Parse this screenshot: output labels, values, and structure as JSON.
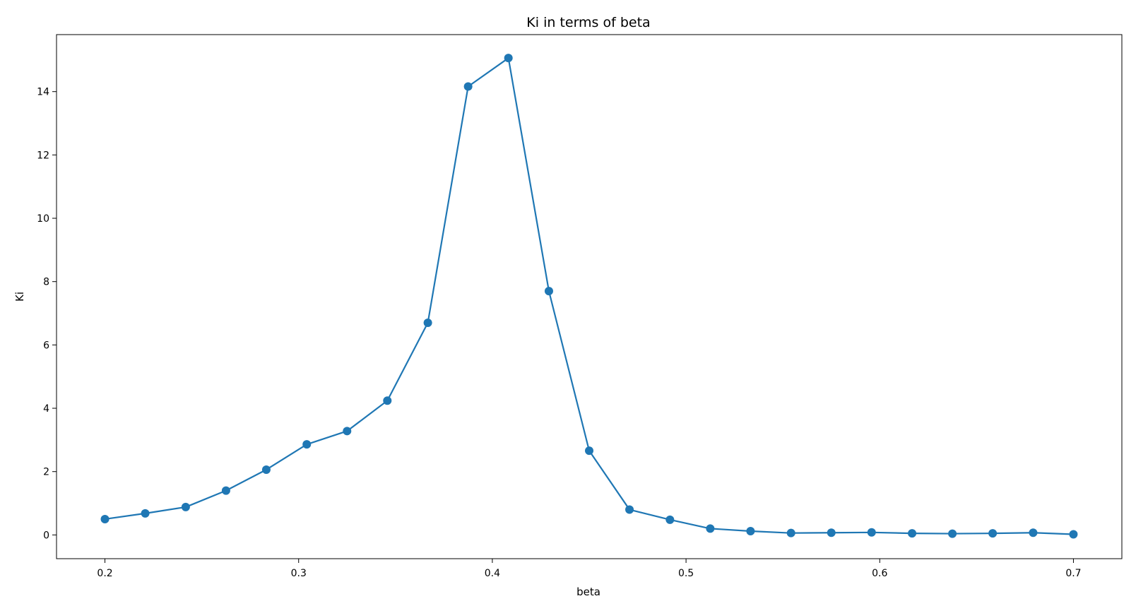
{
  "chart_data": {
    "type": "line",
    "title": "Ki in terms of beta",
    "xlabel": "beta",
    "ylabel": "Ki",
    "xlim": [
      0.175,
      0.725
    ],
    "ylim": [
      -0.75,
      15.8
    ],
    "xticks": [
      0.2,
      0.3,
      0.4,
      0.5,
      0.6,
      0.7
    ],
    "xtick_labels": [
      "0.2",
      "0.3",
      "0.4",
      "0.5",
      "0.6",
      "0.7"
    ],
    "yticks": [
      0,
      2,
      4,
      6,
      8,
      10,
      12,
      14
    ],
    "ytick_labels": [
      "0",
      "2",
      "4",
      "6",
      "8",
      "10",
      "12",
      "14"
    ],
    "grid": false,
    "series": [
      {
        "color": "#1f77b4",
        "marker": "circle",
        "x": [
          0.2,
          0.2208,
          0.2417,
          0.2625,
          0.2833,
          0.3042,
          0.325,
          0.3458,
          0.3667,
          0.3875,
          0.4083,
          0.4292,
          0.45,
          0.4708,
          0.4917,
          0.5125,
          0.5333,
          0.5542,
          0.575,
          0.5958,
          0.6167,
          0.6375,
          0.6583,
          0.6792,
          0.7
        ],
        "y": [
          0.5,
          0.68,
          0.88,
          1.4,
          2.06,
          2.86,
          3.28,
          4.24,
          6.7,
          14.16,
          15.06,
          7.7,
          2.66,
          0.8,
          0.48,
          0.2,
          0.12,
          0.06,
          0.07,
          0.08,
          0.05,
          0.04,
          0.05,
          0.07,
          0.02
        ]
      }
    ]
  }
}
